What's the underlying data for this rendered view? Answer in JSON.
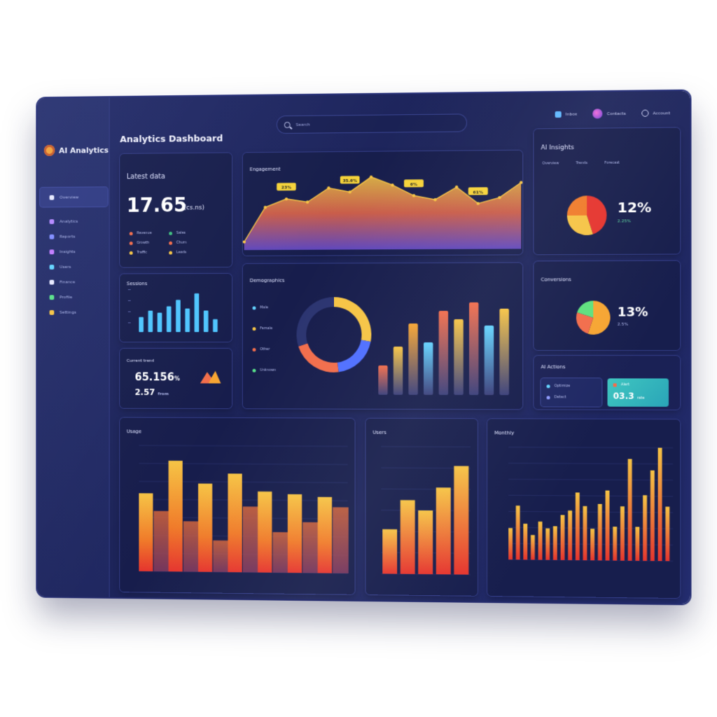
{
  "app": {
    "brand": "AI Analytics",
    "title": "Analytics Dashboard"
  },
  "search": {
    "placeholder": "Search"
  },
  "top_right": [
    {
      "label": "Inbox",
      "icon": "inbox-icon"
    },
    {
      "label": "Contacts",
      "icon": "avatar-icon"
    },
    {
      "label": "Account",
      "icon": "power-icon"
    }
  ],
  "sidebar": {
    "items": [
      {
        "label": "Overview",
        "color": "#e6e9ff"
      },
      {
        "label": "Analytics",
        "color": "#b388ff"
      },
      {
        "label": "Reports",
        "color": "#7f8cff"
      },
      {
        "label": "Insights",
        "color": "#c17bff"
      },
      {
        "label": "Users",
        "color": "#63d3ff"
      },
      {
        "label": "Finance",
        "color": "#e6e9ff"
      },
      {
        "label": "Profile",
        "color": "#58e08a"
      },
      {
        "label": "Settings",
        "color": "#f6c445"
      }
    ]
  },
  "cards": {
    "latest": {
      "title": "Latest data",
      "value": "17.65",
      "unit": "(cs.ns)",
      "legend": [
        {
          "label": "Revenue",
          "color": "#f26d4b"
        },
        {
          "label": "Sales",
          "color": "#3fbf7f"
        },
        {
          "label": "Growth",
          "color": "#f26d4b"
        },
        {
          "label": "Churn",
          "color": "#f26d4b"
        },
        {
          "label": "Traffic",
          "color": "#f6c445"
        },
        {
          "label": "Leads",
          "color": "#f6c445"
        }
      ]
    },
    "trend": {
      "title": "Engagement"
    },
    "ai_insights": {
      "title": "AI Insights",
      "tabs": [
        "Overview",
        "Trends",
        "Forecast"
      ],
      "percent": "12%",
      "sub": "2.25%"
    },
    "sessions": {
      "title": "Sessions"
    },
    "demographics": {
      "title": "Demographics",
      "legend": [
        {
          "label": "Male",
          "color": "#63d3ff"
        },
        {
          "label": "Female",
          "color": "#f6c445"
        },
        {
          "label": "Other",
          "color": "#f26d4b"
        },
        {
          "label": "Unknown",
          "color": "#58e08a"
        }
      ]
    },
    "conversions": {
      "title": "Conversions",
      "percent": "13%",
      "sub": "2.5%"
    },
    "kpi": {
      "title": "Current trend",
      "value": "65.156",
      "suffix": "%",
      "sub": "2.57",
      "sub_label": "from"
    },
    "ai_actions": {
      "title": "AI Actions",
      "rows": [
        {
          "label": "Optimize",
          "color": "#63d3ff"
        },
        {
          "label": "Detect",
          "color": "#8f9bff"
        }
      ],
      "highlight": {
        "title": "Alert",
        "value": "03.3",
        "label": "rate"
      }
    },
    "usage": {
      "title": "Usage"
    },
    "users": {
      "title": "Users"
    },
    "monthly": {
      "title": "Monthly"
    }
  },
  "chart_data": [
    {
      "id": "trend",
      "type": "area",
      "title": "Engagement",
      "x": [
        0,
        1,
        2,
        3,
        4,
        5,
        6,
        7,
        8,
        9,
        10,
        11,
        12,
        13
      ],
      "values": [
        10,
        52,
        62,
        58,
        75,
        70,
        88,
        78,
        65,
        60,
        75,
        55,
        62,
        80
      ],
      "labels": [
        {
          "index": 2,
          "text": "23%"
        },
        {
          "index": 5,
          "text": "35.6%"
        },
        {
          "index": 8,
          "text": "6%"
        },
        {
          "index": 11,
          "text": "61%"
        }
      ],
      "ylim": [
        0,
        100
      ]
    },
    {
      "id": "ai_pie",
      "type": "pie",
      "values": [
        45,
        30,
        25
      ],
      "colors": [
        "#e5342e",
        "#f6c445",
        "#f07b2a"
      ]
    },
    {
      "id": "sessions",
      "type": "bar",
      "values": [
        35,
        50,
        45,
        60,
        75,
        55,
        90,
        50,
        30
      ],
      "color": "#4fc6ff",
      "ylim": [
        0,
        100
      ]
    },
    {
      "id": "donut",
      "type": "pie",
      "values": [
        28,
        20,
        22,
        30
      ],
      "colors": [
        "#f6c445",
        "#4f6fff",
        "#f26d4b",
        "#2b3470"
      ]
    },
    {
      "id": "demo_bars",
      "type": "bar",
      "values": [
        28,
        46,
        68,
        50,
        80,
        72,
        88,
        66,
        82
      ],
      "colors": [
        "#f26d4b",
        "#f6c445",
        "#f6a532",
        "#63d3ff",
        "#f26d4b",
        "#f6c445",
        "#f26d4b",
        "#63d3ff",
        "#f6c445"
      ],
      "ylim": [
        0,
        100
      ]
    },
    {
      "id": "conv_pie",
      "type": "pie",
      "values": [
        55,
        25,
        20
      ],
      "colors": [
        "#f6a532",
        "#f26d4b",
        "#5ee07e"
      ]
    },
    {
      "id": "usage",
      "type": "bar",
      "values": [
        62,
        48,
        88,
        40,
        70,
        25,
        78,
        52,
        64,
        32,
        62,
        40,
        60,
        52
      ],
      "colors": [
        "#f6c445",
        "#e05a3a"
      ],
      "ylim": [
        0,
        100
      ]
    },
    {
      "id": "users",
      "type": "bar",
      "values": [
        35,
        58,
        50,
        68,
        85
      ],
      "ylim": [
        0,
        100
      ]
    },
    {
      "id": "monthly",
      "type": "bar",
      "values": [
        28,
        48,
        32,
        22,
        34,
        28,
        30,
        40,
        44,
        60,
        48,
        28,
        50,
        62,
        30,
        48,
        90,
        30,
        58,
        80,
        100,
        48
      ],
      "ylim": [
        0,
        100
      ]
    }
  ]
}
